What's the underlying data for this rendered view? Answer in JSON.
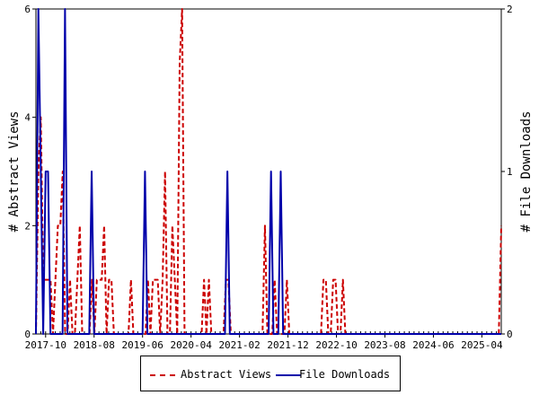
{
  "chart_data": {
    "type": "line",
    "title": "",
    "xlabel": "",
    "ylabel": "# Abstract Views",
    "y2label": "# File Downloads",
    "x_ticks": [
      "2017-10",
      "2018-08",
      "2019-06",
      "2020-04",
      "2021-02",
      "2021-12",
      "2022-10",
      "2023-08",
      "2024-06",
      "2025-04"
    ],
    "y_ticks": [
      "0",
      "2",
      "4",
      "6"
    ],
    "y2_ticks": [
      "0",
      "1",
      "2"
    ],
    "ylim": [
      0,
      6
    ],
    "y2lim": [
      0,
      2
    ],
    "start_month": "2017-08",
    "end_month": "2025-08",
    "grid": false,
    "legend_position": "bottom",
    "series": [
      {
        "name": "Abstract Views",
        "axis": "left",
        "color": "#cc0000",
        "style": "dashed",
        "values": [
          0,
          3,
          4,
          1,
          1,
          1,
          1,
          0,
          1,
          2,
          2,
          3,
          0,
          0,
          1,
          0,
          0,
          1,
          2,
          0,
          0,
          0,
          0,
          1,
          0,
          1,
          1,
          1,
          2,
          0,
          1,
          1,
          0,
          0,
          0,
          0,
          0,
          0,
          0,
          1,
          0,
          0,
          0,
          0,
          0,
          0,
          1,
          0,
          1,
          1,
          1,
          0,
          1,
          3,
          0,
          0,
          2,
          1,
          0,
          5,
          6,
          0,
          0,
          0,
          0,
          0,
          0,
          0,
          0,
          1,
          0,
          1,
          0,
          0,
          0,
          0,
          0,
          0,
          1,
          1,
          0,
          0,
          0,
          0,
          0,
          0,
          0,
          0,
          0,
          0,
          0,
          0,
          0,
          0,
          2,
          0,
          0,
          0,
          1,
          0,
          0,
          0,
          0,
          1,
          0,
          0,
          0,
          0,
          0,
          0,
          0,
          0,
          0,
          0,
          0,
          0,
          0,
          0,
          1,
          1,
          0,
          0,
          1,
          1,
          0,
          0,
          1,
          0,
          0,
          0,
          0,
          0,
          0,
          0,
          0,
          0,
          0,
          0,
          0,
          0,
          0,
          0,
          0,
          0,
          0,
          0,
          0,
          0,
          0,
          0,
          0,
          0,
          0,
          0,
          0,
          0,
          0,
          0,
          0,
          0,
          0,
          0,
          0,
          0,
          0,
          0,
          0,
          0,
          0,
          0,
          0,
          0,
          0,
          0,
          0,
          0,
          0,
          0,
          0,
          0,
          0,
          0,
          0,
          0,
          0,
          0,
          0,
          0,
          0,
          0,
          0,
          2
        ],
        "note": ""
      },
      {
        "name": "File Downloads",
        "axis": "right",
        "color": "#0000aa",
        "style": "solid",
        "values": [
          0,
          2,
          1,
          0,
          1,
          1,
          0,
          0,
          0,
          0,
          0,
          0,
          2,
          0,
          0,
          0,
          0,
          0,
          0,
          0,
          0,
          0,
          0,
          1,
          0,
          0,
          0,
          0,
          0,
          0,
          0,
          0,
          0,
          0,
          0,
          0,
          0,
          0,
          0,
          0,
          0,
          0,
          0,
          0,
          0,
          1,
          0,
          0,
          0,
          0,
          0,
          0,
          0,
          0,
          0,
          0,
          0,
          0,
          0,
          0,
          0,
          0,
          0,
          0,
          0,
          0,
          0,
          0,
          0,
          0,
          0,
          0,
          0,
          0,
          0,
          0,
          0,
          0,
          0,
          1,
          0,
          0,
          0,
          0,
          0,
          0,
          0,
          0,
          0,
          0,
          0,
          0,
          0,
          0,
          0,
          0,
          0,
          1,
          0,
          0,
          0,
          1,
          0,
          0,
          0,
          0,
          0,
          0,
          0,
          0,
          0,
          0,
          0,
          0,
          0,
          0,
          0,
          0,
          0,
          0,
          0,
          0,
          0,
          0,
          0,
          0,
          0,
          0,
          0,
          0,
          0,
          0,
          0,
          0,
          0,
          0,
          0,
          0,
          0,
          0,
          0,
          0,
          0,
          0,
          0,
          0,
          0,
          0,
          0,
          0,
          0,
          0,
          0,
          0,
          0,
          0,
          0,
          0,
          0,
          0,
          0,
          0,
          0,
          0,
          0,
          0,
          0,
          0,
          0,
          0,
          0,
          0,
          0,
          0,
          0,
          0,
          0,
          0,
          0,
          0,
          0,
          0,
          0,
          0,
          0,
          0,
          0,
          0,
          0,
          0,
          0,
          0,
          0
        ]
      }
    ]
  },
  "legend": {
    "item1": "Abstract Views",
    "item2": "File Downloads"
  }
}
